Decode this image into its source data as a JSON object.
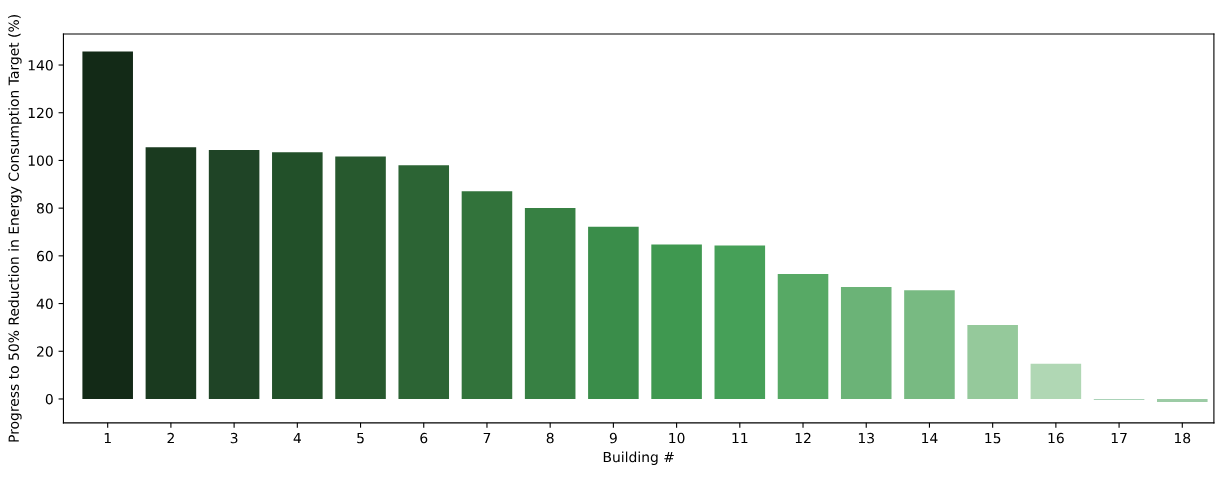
{
  "chart_data": {
    "type": "bar",
    "xlabel": "Building #",
    "ylabel": "Progress to 50% Reduction in Energy Consumption Target (%)",
    "categories": [
      "1",
      "2",
      "3",
      "4",
      "5",
      "6",
      "7",
      "8",
      "9",
      "10",
      "11",
      "12",
      "13",
      "14",
      "15",
      "16",
      "17",
      "18"
    ],
    "values": [
      145.7,
      105.5,
      104.4,
      103.4,
      101.6,
      98,
      87.1,
      80.1,
      72.2,
      64.8,
      64.3,
      52.4,
      46.9,
      45.6,
      31.0,
      14.8,
      -0.3,
      -1.3
    ],
    "colors": [
      "#132a17",
      "#1a3a1f",
      "#1f4426",
      "#225029",
      "#27592e",
      "#2c6434",
      "#32733b",
      "#378043",
      "#3a8d4a",
      "#3f9850",
      "#46a058",
      "#57a965",
      "#6bb377",
      "#78ba82",
      "#95c99b",
      "#b0d7b4",
      "#8fc4a0",
      "#9ccba5"
    ],
    "ylim": [
      -10,
      153
    ],
    "yticks": [
      0,
      20,
      40,
      60,
      80,
      100,
      120,
      140
    ],
    "grid": false
  }
}
